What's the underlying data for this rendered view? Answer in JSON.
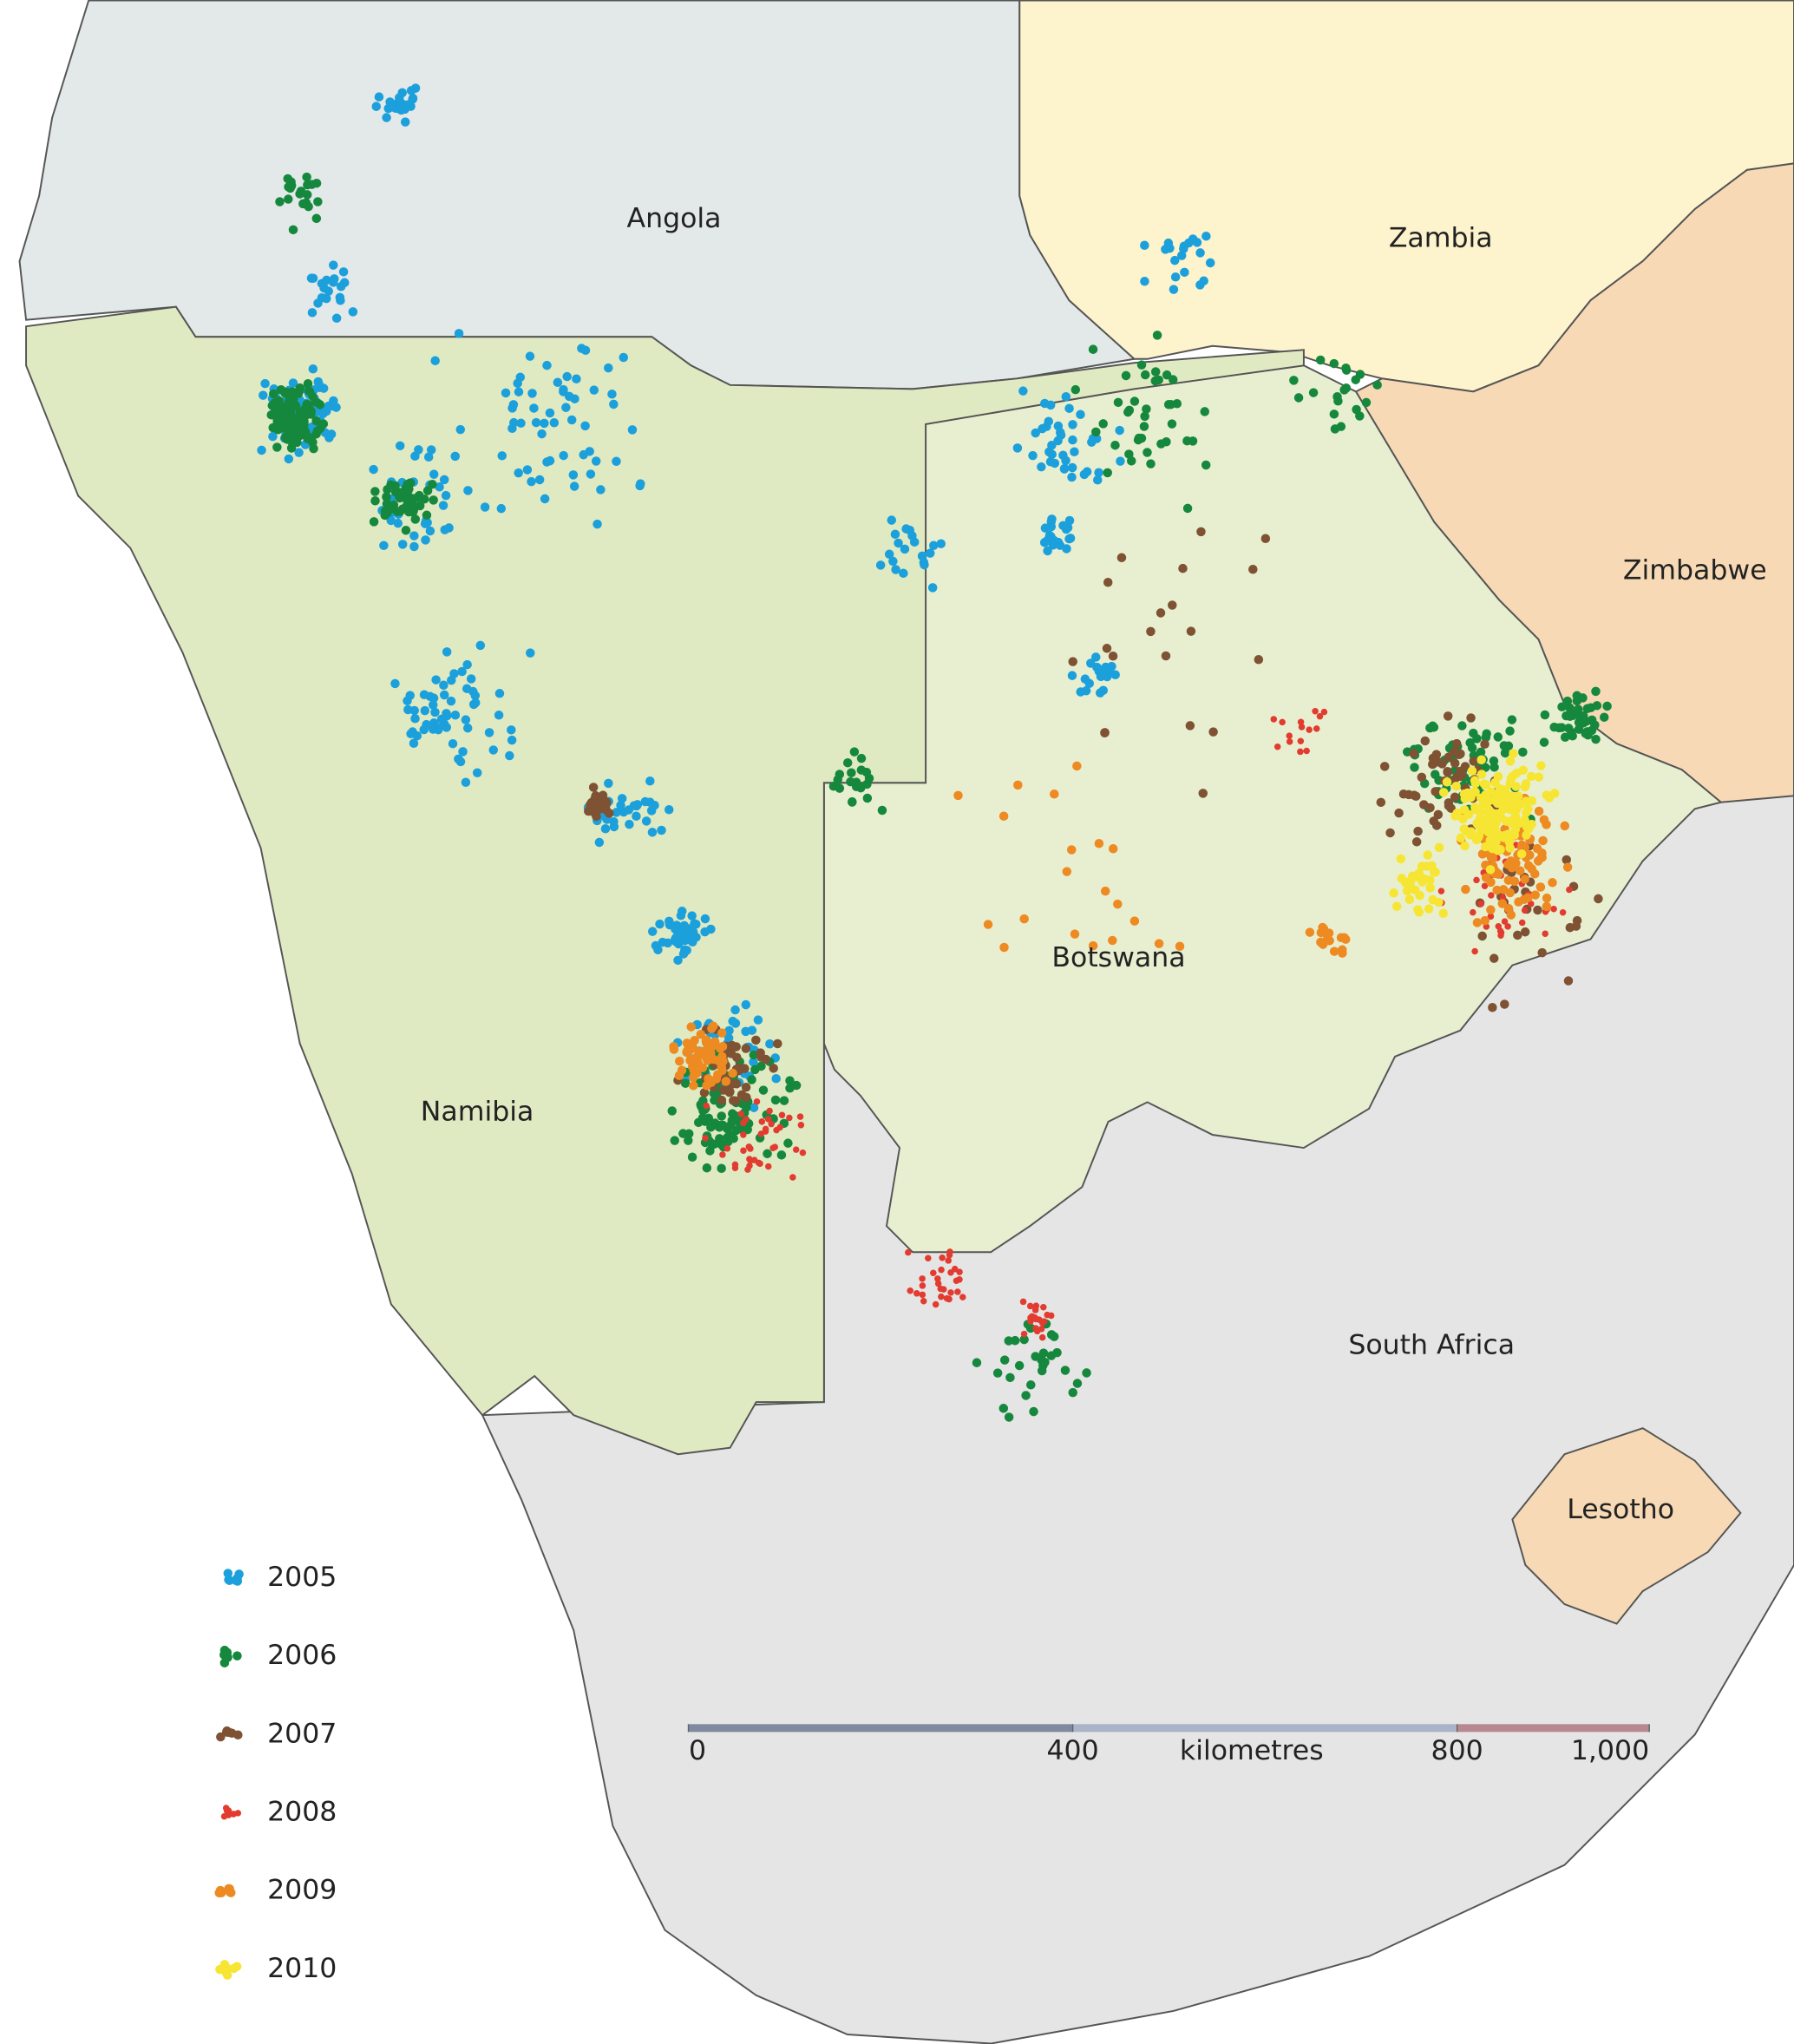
{
  "countries": [
    "Angola",
    "Zambia",
    "Zimbabwe",
    "Botswana",
    "Namibia",
    "South Africa",
    "Lesotho"
  ],
  "legend": [
    {
      "label": "2005",
      "color": "#1ca0dc"
    },
    {
      "label": "2006",
      "color": "#16883e"
    },
    {
      "label": "2007",
      "color": "#7e5233"
    },
    {
      "label": "2008",
      "color": "#e23b30"
    },
    {
      "label": "2009",
      "color": "#ee8a22"
    },
    {
      "label": "2010",
      "color": "#f7e534"
    }
  ],
  "scale_bar": {
    "unit": "kilometres",
    "ticks": [
      0,
      400,
      800,
      {
        "value": 1000,
        "label": "1,000"
      }
    ]
  }
}
